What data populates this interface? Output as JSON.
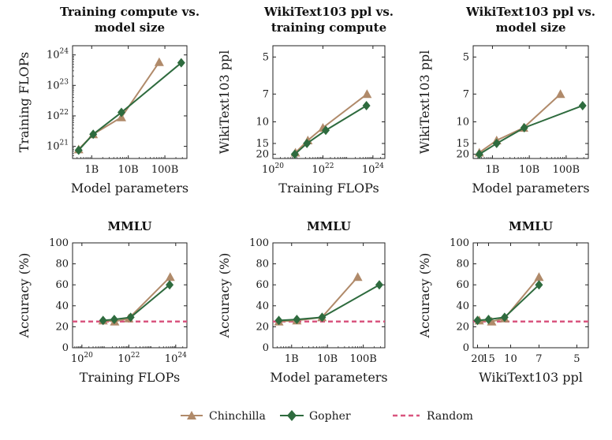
{
  "colors": {
    "chinchilla": "#b08a6a",
    "gopher": "#2e6b3e",
    "random": "#d9557f"
  },
  "legend": {
    "chinchilla": "Chinchilla",
    "gopher": "Gopher",
    "random": "Random"
  },
  "chart_data": [
    {
      "id": "c1",
      "type": "line",
      "title": "Training compute vs.\nmodel size",
      "xlabel": "Model parameters",
      "ylabel": "Training FLOPs",
      "xscale": "log",
      "yscale": "log",
      "xlim": [
        300000000.0,
        400000000000.0
      ],
      "ylim": [
        4e+20,
        2e+24
      ],
      "xticks": [
        {
          "v": 1000000000.0,
          "label": "1B"
        },
        {
          "v": 10000000000.0,
          "label": "10B"
        },
        {
          "v": 100000000000.0,
          "label": "100B"
        }
      ],
      "yticks": [
        {
          "v": 1e+21,
          "label": "10^21"
        },
        {
          "v": 1e+22,
          "label": "10^22"
        },
        {
          "v": 1e+23,
          "label": "10^23"
        },
        {
          "v": 1e+24,
          "label": "10^24"
        }
      ],
      "series": [
        {
          "name": "Chinchilla",
          "x": [
            440000000.0,
            1100000000.0,
            6500000000.0,
            70000000000.0
          ],
          "y": [
            8e+20,
            2.5e+21,
            9e+21,
            5.8e+23
          ]
        },
        {
          "name": "Gopher",
          "x": [
            440000000.0,
            1100000000.0,
            6500000000.0,
            280000000000.0
          ],
          "y": [
            7.5e+20,
            2.5e+21,
            1.3e+22,
            5.5e+23
          ]
        }
      ]
    },
    {
      "id": "c2",
      "type": "line",
      "title": "WikiText103 ppl vs.\ntraining compute",
      "xlabel": "Training FLOPs",
      "ylabel": "WikiText103 ppl",
      "xscale": "log",
      "yscale": "reciprocal",
      "xlim": [
        1e+20,
        3e+24
      ],
      "ylim": [
        23,
        4.6
      ],
      "xticks": [
        {
          "v": 1e+20,
          "label": "10^20"
        },
        {
          "v": 1e+22,
          "label": "10^22"
        },
        {
          "v": 1e+24,
          "label": "10^24"
        }
      ],
      "yticks": [
        {
          "v": 5,
          "label": "5"
        },
        {
          "v": 7,
          "label": "7"
        },
        {
          "v": 10,
          "label": "10"
        },
        {
          "v": 15,
          "label": "15"
        },
        {
          "v": 20,
          "label": "20"
        }
      ],
      "series": [
        {
          "name": "Chinchilla",
          "x": [
            8e+20,
            2.5e+21,
            1e+22,
            5.8e+23
          ],
          "y": [
            19,
            14,
            11,
            7
          ]
        },
        {
          "name": "Gopher",
          "x": [
            7.5e+20,
            2.3e+21,
            1.3e+22,
            5.5e+23
          ],
          "y": [
            20,
            15,
            11.5,
            8
          ]
        }
      ]
    },
    {
      "id": "c3",
      "type": "line",
      "title": "WikiText103 ppl vs.\nmodel size",
      "xlabel": "Model parameters",
      "ylabel": "WikiText103 ppl",
      "xscale": "log",
      "yscale": "reciprocal",
      "xlim": [
        300000000.0,
        400000000000.0
      ],
      "ylim": [
        23,
        4.6
      ],
      "xticks": [
        {
          "v": 1000000000.0,
          "label": "1B"
        },
        {
          "v": 10000000000.0,
          "label": "10B"
        },
        {
          "v": 100000000000.0,
          "label": "100B"
        }
      ],
      "yticks": [
        {
          "v": 5,
          "label": "5"
        },
        {
          "v": 7,
          "label": "7"
        },
        {
          "v": 10,
          "label": "10"
        },
        {
          "v": 15,
          "label": "15"
        },
        {
          "v": 20,
          "label": "20"
        }
      ],
      "series": [
        {
          "name": "Chinchilla",
          "x": [
            440000000.0,
            1300000000.0,
            7000000000.0,
            70000000000.0
          ],
          "y": [
            19,
            14,
            11,
            7
          ]
        },
        {
          "name": "Gopher",
          "x": [
            440000000.0,
            1300000000.0,
            7300000000.0,
            280000000000.0
          ],
          "y": [
            20,
            15,
            11,
            8
          ]
        }
      ]
    },
    {
      "id": "c4",
      "type": "line",
      "title": "MMLU",
      "xlabel": "Training FLOPs",
      "ylabel": "Accuracy (%)",
      "xscale": "log",
      "yscale": "linear",
      "xlim": [
        4e+19,
        3e+24
      ],
      "ylim": [
        0,
        100
      ],
      "xticks": [
        {
          "v": 1e+20,
          "label": "10^20"
        },
        {
          "v": 1e+22,
          "label": "10^22"
        },
        {
          "v": 1e+24,
          "label": "10^24"
        }
      ],
      "yticks": [
        {
          "v": 0,
          "label": "0"
        },
        {
          "v": 20,
          "label": "20"
        },
        {
          "v": 40,
          "label": "40"
        },
        {
          "v": 60,
          "label": "60"
        },
        {
          "v": 80,
          "label": "80"
        },
        {
          "v": 100,
          "label": "100"
        }
      ],
      "random": 25,
      "series": [
        {
          "name": "Chinchilla",
          "x": [
            8e+20,
            2.5e+21,
            1e+22,
            5.8e+23
          ],
          "y": [
            26,
            25,
            28,
            67.5
          ]
        },
        {
          "name": "Gopher",
          "x": [
            8e+20,
            2.4e+21,
            1.2e+22,
            5.5e+23
          ],
          "y": [
            26,
            27,
            29,
            60
          ]
        }
      ]
    },
    {
      "id": "c5",
      "type": "line",
      "title": "MMLU",
      "xlabel": "Model parameters",
      "ylabel": "Accuracy (%)",
      "xscale": "log",
      "yscale": "linear",
      "xlim": [
        300000000.0,
        400000000000.0
      ],
      "ylim": [
        0,
        100
      ],
      "xticks": [
        {
          "v": 1000000000.0,
          "label": "1B"
        },
        {
          "v": 10000000000.0,
          "label": "10B"
        },
        {
          "v": 100000000000.0,
          "label": "100B"
        }
      ],
      "yticks": [
        {
          "v": 0,
          "label": "0"
        },
        {
          "v": 20,
          "label": "20"
        },
        {
          "v": 40,
          "label": "40"
        },
        {
          "v": 60,
          "label": "60"
        },
        {
          "v": 80,
          "label": "80"
        },
        {
          "v": 100,
          "label": "100"
        }
      ],
      "random": 25,
      "series": [
        {
          "name": "Chinchilla",
          "x": [
            440000000.0,
            1400000000.0,
            7000000000.0,
            70000000000.0
          ],
          "y": [
            25,
            26,
            29,
            67.5
          ]
        },
        {
          "name": "Gopher",
          "x": [
            440000000.0,
            1400000000.0,
            7100000000.0,
            280000000000.0
          ],
          "y": [
            26,
            27,
            29,
            60
          ]
        }
      ]
    },
    {
      "id": "c6",
      "type": "line",
      "title": "MMLU",
      "xlabel": "WikiText103 ppl",
      "ylabel": "Accuracy (%)",
      "xscale": "reciprocal",
      "yscale": "linear",
      "xlim": [
        23,
        4.6
      ],
      "ylim": [
        0,
        100
      ],
      "xticks": [
        {
          "v": 20,
          "label": "20"
        },
        {
          "v": 15,
          "label": "15"
        },
        {
          "v": 10,
          "label": "10"
        },
        {
          "v": 7,
          "label": "7"
        },
        {
          "v": 5,
          "label": "5"
        }
      ],
      "yticks": [
        {
          "v": 0,
          "label": "0"
        },
        {
          "v": 20,
          "label": "20"
        },
        {
          "v": 40,
          "label": "40"
        },
        {
          "v": 60,
          "label": "60"
        },
        {
          "v": 80,
          "label": "80"
        },
        {
          "v": 100,
          "label": "100"
        }
      ],
      "random": 25,
      "series": [
        {
          "name": "Chinchilla",
          "x": [
            19,
            14,
            11,
            7
          ],
          "y": [
            26,
            25,
            28,
            67.5
          ]
        },
        {
          "name": "Gopher",
          "x": [
            20,
            15,
            11,
            7
          ],
          "y": [
            26,
            27,
            29,
            60
          ]
        }
      ]
    }
  ]
}
